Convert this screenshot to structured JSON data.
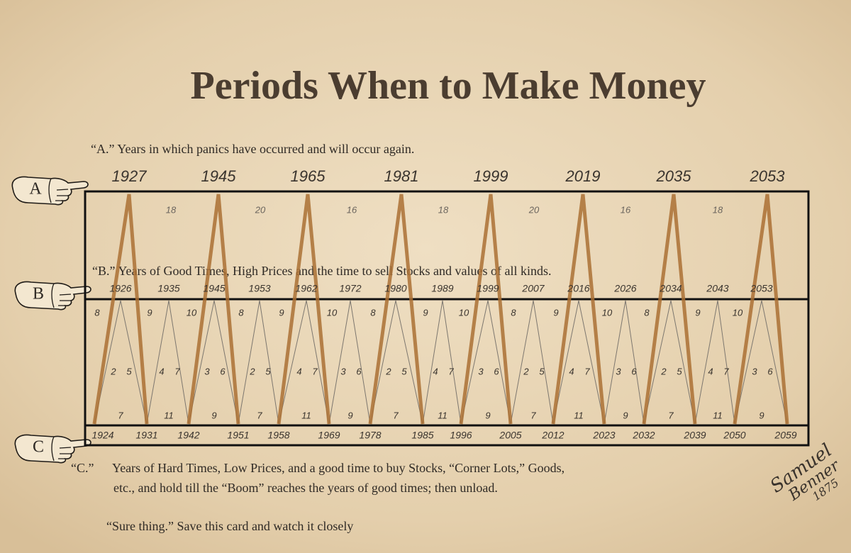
{
  "title": "Periods When to Make Money",
  "a": {
    "marker": "A",
    "caption": "“A.” Years in which panics have occurred and will occur again.",
    "years": [
      1927,
      1945,
      1965,
      1981,
      1999,
      2019,
      2035,
      2053
    ],
    "intervals": [
      18,
      20,
      16,
      18,
      20,
      16,
      18
    ]
  },
  "b": {
    "marker": "B",
    "caption": "“B.” Years of Good Times, High Prices and the time to sell Stocks and values of all kinds.",
    "years": [
      1926,
      1935,
      1945,
      1953,
      1962,
      1972,
      1980,
      1989,
      1999,
      2007,
      2016,
      2026,
      2034,
      2043,
      2053
    ],
    "upper_numbers": [
      8,
      9,
      10,
      8,
      9,
      10,
      8,
      9,
      10,
      8,
      9,
      10,
      8,
      9,
      10
    ],
    "middle_numbers": [
      [
        2,
        5
      ],
      [
        4,
        7
      ],
      [
        3,
        6
      ],
      [
        2,
        5
      ],
      [
        4,
        7
      ],
      [
        3,
        6
      ],
      [
        2,
        5
      ],
      [
        4,
        7
      ],
      [
        3,
        6
      ],
      [
        2,
        5
      ],
      [
        4,
        7
      ],
      [
        3,
        6
      ],
      [
        2,
        5
      ],
      [
        4,
        7
      ],
      [
        3,
        6
      ]
    ],
    "lower_numbers": [
      7,
      11,
      9,
      7,
      11,
      9,
      7,
      11,
      9,
      7,
      11,
      9,
      7,
      11,
      9
    ]
  },
  "c": {
    "marker": "C",
    "caption_label": "“C.”",
    "caption_lines": [
      "Years of Hard Times, Low Prices, and a good time to buy Stocks, “Corner Lots,” Goods,",
      "etc., and hold till  the “Boom” reaches the years of good times; then unload."
    ],
    "years": [
      1924,
      1931,
      1942,
      1951,
      1958,
      1969,
      1978,
      1985,
      1996,
      2005,
      2012,
      2023,
      2032,
      2039,
      2050,
      2059
    ]
  },
  "footer": "“Sure thing.” Save this card and watch it closely",
  "signature": [
    "Samuel",
    "Benner",
    "1875"
  ]
}
